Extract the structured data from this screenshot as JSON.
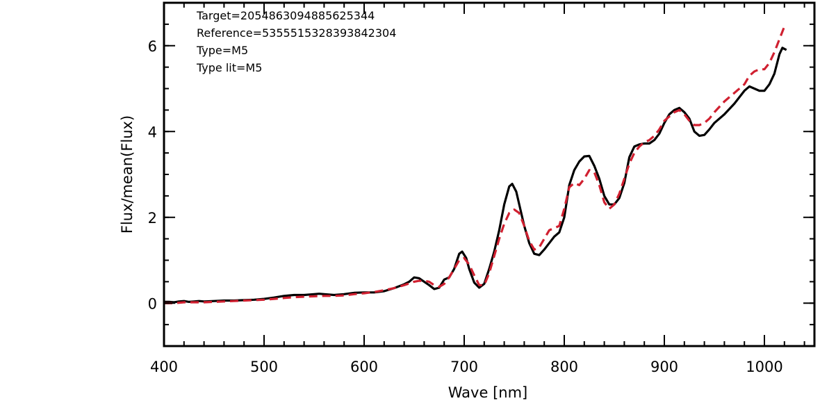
{
  "chart_data": {
    "type": "line",
    "title": "",
    "xlabel": "Wave [nm]",
    "ylabel": "Flux/mean(Flux)",
    "xlim": [
      400,
      1050
    ],
    "ylim": [
      -1,
      7
    ],
    "xticks": [
      400,
      500,
      600,
      700,
      800,
      900,
      1000
    ],
    "yticks": [
      0,
      2,
      4,
      6
    ],
    "xminor_step": 20,
    "yminor_step": 0.5,
    "grid": false,
    "annotations": [
      "Target=2054863094885625344",
      "Reference=5355515328393842304",
      "Type=M5",
      "Type lit=M5"
    ],
    "series": [
      {
        "color": "#000000",
        "style": "solid",
        "points": [
          [
            400,
            0.03
          ],
          [
            405,
            0.03
          ],
          [
            410,
            0.02
          ],
          [
            415,
            0.04
          ],
          [
            420,
            0.05
          ],
          [
            425,
            0.03
          ],
          [
            430,
            0.04
          ],
          [
            435,
            0.05
          ],
          [
            440,
            0.04
          ],
          [
            450,
            0.05
          ],
          [
            460,
            0.06
          ],
          [
            470,
            0.06
          ],
          [
            480,
            0.07
          ],
          [
            490,
            0.08
          ],
          [
            500,
            0.1
          ],
          [
            510,
            0.13
          ],
          [
            520,
            0.17
          ],
          [
            530,
            0.19
          ],
          [
            540,
            0.19
          ],
          [
            550,
            0.21
          ],
          [
            555,
            0.22
          ],
          [
            560,
            0.21
          ],
          [
            570,
            0.19
          ],
          [
            580,
            0.21
          ],
          [
            590,
            0.24
          ],
          [
            600,
            0.25
          ],
          [
            610,
            0.25
          ],
          [
            620,
            0.28
          ],
          [
            630,
            0.35
          ],
          [
            640,
            0.44
          ],
          [
            645,
            0.5
          ],
          [
            650,
            0.6
          ],
          [
            655,
            0.58
          ],
          [
            660,
            0.5
          ],
          [
            665,
            0.42
          ],
          [
            670,
            0.33
          ],
          [
            675,
            0.36
          ],
          [
            680,
            0.55
          ],
          [
            685,
            0.6
          ],
          [
            690,
            0.8
          ],
          [
            695,
            1.15
          ],
          [
            698,
            1.2
          ],
          [
            702,
            1.05
          ],
          [
            705,
            0.8
          ],
          [
            710,
            0.48
          ],
          [
            715,
            0.36
          ],
          [
            720,
            0.45
          ],
          [
            725,
            0.8
          ],
          [
            730,
            1.2
          ],
          [
            735,
            1.7
          ],
          [
            740,
            2.3
          ],
          [
            745,
            2.72
          ],
          [
            748,
            2.78
          ],
          [
            752,
            2.6
          ],
          [
            755,
            2.3
          ],
          [
            760,
            1.8
          ],
          [
            765,
            1.4
          ],
          [
            770,
            1.15
          ],
          [
            775,
            1.12
          ],
          [
            780,
            1.25
          ],
          [
            785,
            1.4
          ],
          [
            790,
            1.55
          ],
          [
            795,
            1.65
          ],
          [
            800,
            2.0
          ],
          [
            805,
            2.75
          ],
          [
            810,
            3.1
          ],
          [
            815,
            3.3
          ],
          [
            820,
            3.42
          ],
          [
            825,
            3.43
          ],
          [
            830,
            3.2
          ],
          [
            835,
            2.9
          ],
          [
            840,
            2.5
          ],
          [
            845,
            2.3
          ],
          [
            850,
            2.3
          ],
          [
            855,
            2.45
          ],
          [
            860,
            2.8
          ],
          [
            865,
            3.4
          ],
          [
            870,
            3.65
          ],
          [
            875,
            3.7
          ],
          [
            880,
            3.72
          ],
          [
            885,
            3.72
          ],
          [
            890,
            3.8
          ],
          [
            895,
            3.95
          ],
          [
            900,
            4.2
          ],
          [
            905,
            4.4
          ],
          [
            910,
            4.5
          ],
          [
            915,
            4.55
          ],
          [
            920,
            4.45
          ],
          [
            925,
            4.3
          ],
          [
            930,
            4.0
          ],
          [
            935,
            3.9
          ],
          [
            940,
            3.92
          ],
          [
            945,
            4.05
          ],
          [
            950,
            4.2
          ],
          [
            960,
            4.4
          ],
          [
            970,
            4.65
          ],
          [
            975,
            4.8
          ],
          [
            980,
            4.95
          ],
          [
            985,
            5.05
          ],
          [
            990,
            5.0
          ],
          [
            995,
            4.95
          ],
          [
            1000,
            4.95
          ],
          [
            1005,
            5.1
          ],
          [
            1010,
            5.35
          ],
          [
            1015,
            5.8
          ],
          [
            1018,
            5.95
          ],
          [
            1022,
            5.9
          ]
        ]
      },
      {
        "color": "#d02030",
        "style": "dashed",
        "points": [
          [
            400,
            0.0
          ],
          [
            410,
            0.0
          ],
          [
            420,
            0.02
          ],
          [
            430,
            0.02
          ],
          [
            440,
            0.02
          ],
          [
            450,
            0.03
          ],
          [
            460,
            0.04
          ],
          [
            470,
            0.05
          ],
          [
            480,
            0.06
          ],
          [
            490,
            0.07
          ],
          [
            500,
            0.08
          ],
          [
            510,
            0.1
          ],
          [
            520,
            0.12
          ],
          [
            530,
            0.14
          ],
          [
            540,
            0.15
          ],
          [
            550,
            0.16
          ],
          [
            560,
            0.17
          ],
          [
            570,
            0.17
          ],
          [
            580,
            0.18
          ],
          [
            590,
            0.21
          ],
          [
            600,
            0.23
          ],
          [
            610,
            0.26
          ],
          [
            620,
            0.3
          ],
          [
            630,
            0.35
          ],
          [
            640,
            0.42
          ],
          [
            650,
            0.5
          ],
          [
            655,
            0.52
          ],
          [
            660,
            0.52
          ],
          [
            665,
            0.5
          ],
          [
            670,
            0.42
          ],
          [
            675,
            0.38
          ],
          [
            680,
            0.45
          ],
          [
            685,
            0.6
          ],
          [
            690,
            0.8
          ],
          [
            695,
            1.0
          ],
          [
            700,
            1.05
          ],
          [
            705,
            0.9
          ],
          [
            710,
            0.65
          ],
          [
            715,
            0.42
          ],
          [
            720,
            0.42
          ],
          [
            725,
            0.7
          ],
          [
            730,
            1.1
          ],
          [
            735,
            1.5
          ],
          [
            740,
            1.85
          ],
          [
            745,
            2.1
          ],
          [
            750,
            2.18
          ],
          [
            755,
            2.1
          ],
          [
            760,
            1.8
          ],
          [
            765,
            1.45
          ],
          [
            770,
            1.25
          ],
          [
            775,
            1.3
          ],
          [
            780,
            1.5
          ],
          [
            785,
            1.7
          ],
          [
            790,
            1.75
          ],
          [
            795,
            1.8
          ],
          [
            800,
            2.2
          ],
          [
            805,
            2.7
          ],
          [
            810,
            2.8
          ],
          [
            815,
            2.75
          ],
          [
            820,
            2.9
          ],
          [
            825,
            3.1
          ],
          [
            830,
            3.05
          ],
          [
            835,
            2.75
          ],
          [
            840,
            2.35
          ],
          [
            845,
            2.2
          ],
          [
            850,
            2.3
          ],
          [
            855,
            2.55
          ],
          [
            860,
            2.9
          ],
          [
            865,
            3.25
          ],
          [
            870,
            3.5
          ],
          [
            875,
            3.65
          ],
          [
            880,
            3.75
          ],
          [
            885,
            3.8
          ],
          [
            890,
            3.9
          ],
          [
            895,
            4.05
          ],
          [
            900,
            4.25
          ],
          [
            905,
            4.35
          ],
          [
            910,
            4.45
          ],
          [
            915,
            4.5
          ],
          [
            920,
            4.4
          ],
          [
            925,
            4.25
          ],
          [
            930,
            4.15
          ],
          [
            935,
            4.15
          ],
          [
            940,
            4.2
          ],
          [
            945,
            4.3
          ],
          [
            950,
            4.45
          ],
          [
            960,
            4.7
          ],
          [
            970,
            4.9
          ],
          [
            980,
            5.1
          ],
          [
            985,
            5.3
          ],
          [
            990,
            5.4
          ],
          [
            995,
            5.45
          ],
          [
            1000,
            5.45
          ],
          [
            1005,
            5.6
          ],
          [
            1010,
            5.85
          ],
          [
            1015,
            6.15
          ],
          [
            1020,
            6.45
          ]
        ]
      }
    ]
  }
}
